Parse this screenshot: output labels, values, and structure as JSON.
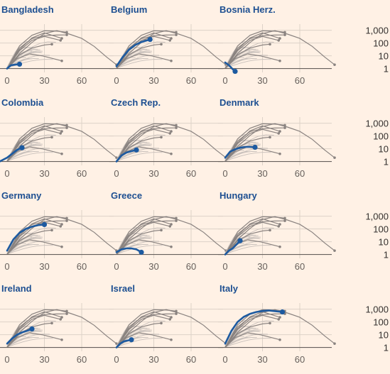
{
  "chart_data": {
    "type": "line",
    "scale": "log",
    "xlim": [
      -10,
      90
    ],
    "ylim": [
      0.5,
      3000
    ],
    "x_ticks": [
      "0",
      "30",
      "60"
    ],
    "y_ticks": [
      "1,000",
      "100",
      "10",
      "1"
    ],
    "y_tick_values": [
      1000,
      100,
      10,
      1
    ],
    "gridlines": true,
    "colors": {
      "highlight": "#1d5aa0",
      "background_lines": "#8a8380",
      "faint_lines": "#c8c0bb",
      "title": "#1d4f91"
    },
    "background_series": [
      {
        "x": [
          0,
          10,
          20,
          30,
          40,
          50,
          60,
          70,
          80,
          88
        ],
        "y": [
          1,
          15,
          110,
          550,
          920,
          500,
          230,
          55,
          8,
          2
        ]
      },
      {
        "x": [
          0,
          10,
          20,
          30,
          40,
          48
        ],
        "y": [
          1,
          60,
          400,
          900,
          850,
          700
        ]
      },
      {
        "x": [
          0,
          10,
          20,
          30,
          40,
          48
        ],
        "y": [
          1,
          40,
          220,
          380,
          420,
          430
        ]
      },
      {
        "x": [
          0,
          10,
          20,
          30,
          44
        ],
        "y": [
          1,
          30,
          250,
          620,
          230
        ]
      },
      {
        "x": [
          0,
          10,
          20,
          30,
          43
        ],
        "y": [
          1,
          25,
          160,
          330,
          160
        ]
      },
      {
        "x": [
          0,
          10,
          20,
          30,
          36
        ],
        "y": [
          1,
          12,
          40,
          70,
          80
        ]
      },
      {
        "x": [
          0,
          8,
          18,
          28,
          44
        ],
        "y": [
          1,
          6,
          14,
          10,
          4
        ]
      }
    ],
    "panels": [
      {
        "title": "Bangladesh",
        "x": [
          0,
          3,
          6,
          10
        ],
        "y": [
          1,
          1.8,
          2,
          2.2
        ]
      },
      {
        "title": "Belgium",
        "x": [
          0,
          5,
          10,
          15,
          20,
          27
        ],
        "y": [
          1.5,
          8,
          30,
          70,
          120,
          190
        ]
      },
      {
        "title": "Bosnia Herz.",
        "x": [
          0,
          3,
          6,
          8
        ],
        "y": [
          3,
          1.8,
          0.9,
          0.6
        ]
      },
      {
        "title": "Colombia",
        "x": [
          -10,
          -6,
          0,
          4,
          8,
          12
        ],
        "y": [
          0.7,
          1,
          2,
          4,
          8,
          12
        ]
      },
      {
        "title": "Czech Rep.",
        "x": [
          0,
          4,
          8,
          12,
          16
        ],
        "y": [
          1,
          3,
          5,
          6.5,
          8
        ]
      },
      {
        "title": "Denmark",
        "x": [
          0,
          4,
          8,
          12,
          16,
          20,
          24
        ],
        "y": [
          2,
          6,
          9,
          12,
          14,
          14,
          13
        ]
      },
      {
        "title": "Germany",
        "x": [
          0,
          5,
          10,
          15,
          20,
          25,
          30
        ],
        "y": [
          2,
          15,
          50,
          100,
          150,
          200,
          220
        ]
      },
      {
        "title": "Greece",
        "x": [
          0,
          4,
          8,
          12,
          16,
          20
        ],
        "y": [
          1.5,
          2.5,
          3,
          3,
          2.5,
          1.5
        ]
      },
      {
        "title": "Hungary",
        "x": [
          0,
          3,
          6,
          9,
          12
        ],
        "y": [
          1,
          2,
          3,
          6,
          12
        ]
      },
      {
        "title": "Ireland",
        "x": [
          0,
          4,
          8,
          12,
          16,
          20
        ],
        "y": [
          2,
          5,
          10,
          15,
          20,
          28
        ]
      },
      {
        "title": "Israel",
        "x": [
          0,
          3,
          6,
          9,
          12
        ],
        "y": [
          1,
          2,
          3,
          3.5,
          4
        ]
      },
      {
        "title": "Italy",
        "x": [
          0,
          5,
          10,
          15,
          20,
          25,
          30,
          35,
          40,
          46
        ],
        "y": [
          2,
          20,
          100,
          250,
          430,
          600,
          720,
          780,
          700,
          600
        ]
      }
    ]
  }
}
